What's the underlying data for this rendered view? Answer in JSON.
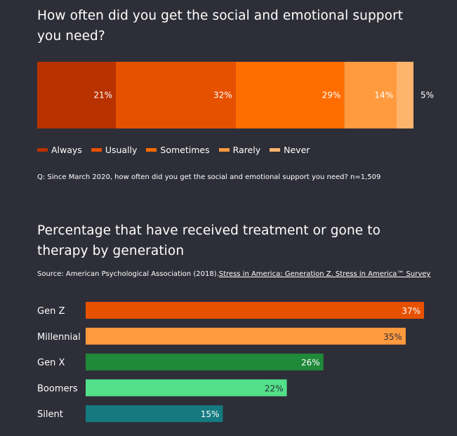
{
  "chart_data": [
    {
      "type": "bar",
      "stacked": true,
      "orientation": "horizontal",
      "title": "How often did you get the social and emotional support you need?",
      "categories": [
        ""
      ],
      "series": [
        {
          "name": "Always",
          "values": [
            21
          ],
          "label": "21%",
          "color": "#b83200"
        },
        {
          "name": "Usually",
          "values": [
            32
          ],
          "label": "32%",
          "color": "#e65100"
        },
        {
          "name": "Sometimes",
          "values": [
            29
          ],
          "label": "29%",
          "color": "#ff6d00"
        },
        {
          "name": "Rarely",
          "values": [
            14
          ],
          "label": "14%",
          "color": "#ff9a3e"
        },
        {
          "name": "Never",
          "values": [
            4.5
          ],
          "label": "5%",
          "color": "#ffb46e"
        }
      ],
      "xlim": [
        0,
        100.5
      ],
      "legend": "bottom-left",
      "note": "Q: Since March 2020, how often did you get the social and emotional support you need? n=1,509"
    },
    {
      "type": "bar",
      "orientation": "horizontal",
      "title": "Percentage that have received treatment or gone to therapy by generation",
      "source_prefix": "Source: American Psychological Association (2018).",
      "source_link": "Stress in America: Generation Z. Stress in America™ Survey",
      "categories": [
        "Gen Z",
        "Millennial",
        "Gen X",
        "Boomers",
        "Silent"
      ],
      "values": [
        37,
        35,
        26,
        22,
        15
      ],
      "labels": [
        "37%",
        "35%",
        "26%",
        "22%",
        "15%"
      ],
      "colors": [
        "#e65100",
        "#ff9a3e",
        "#1f8a3a",
        "#52e08a",
        "#147a80"
      ],
      "xlim": [
        0,
        37
      ]
    }
  ]
}
